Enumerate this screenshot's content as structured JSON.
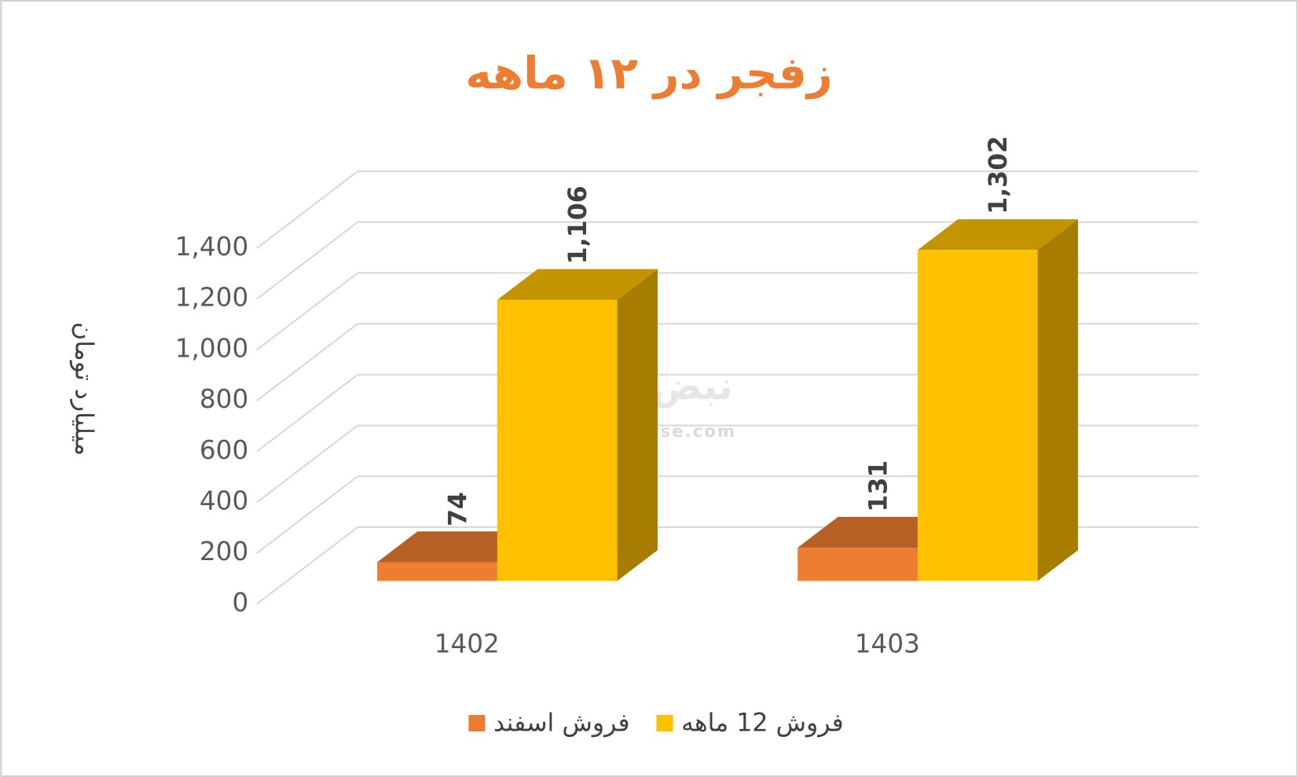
{
  "chart_data": {
    "type": "bar3d",
    "title": "زفجر در ۱۲ ماهه",
    "y_axis_label": "میلیارد تومان",
    "watermark": [
      "نبض بورس",
      "nabzebourse.com"
    ],
    "categories": [
      "1402",
      "1403"
    ],
    "series": [
      {
        "name": "فروش اسفند",
        "color": "#ED7D31",
        "values": [
          74,
          131
        ]
      },
      {
        "name": "فروش 12 ماهه",
        "color": "#FFC000",
        "values": [
          1106,
          1302
        ],
        "value_labels": [
          "1,106",
          "1,302"
        ]
      }
    ],
    "ylim": [
      0,
      1400
    ],
    "yticks": [
      0,
      200,
      400,
      600,
      800,
      {
        "value": 1000,
        "label": "1,000"
      },
      {
        "value": 1200,
        "label": "1,200"
      },
      {
        "value": 1400,
        "label": "1,400"
      }
    ],
    "grid": true,
    "legend": "bottom"
  }
}
